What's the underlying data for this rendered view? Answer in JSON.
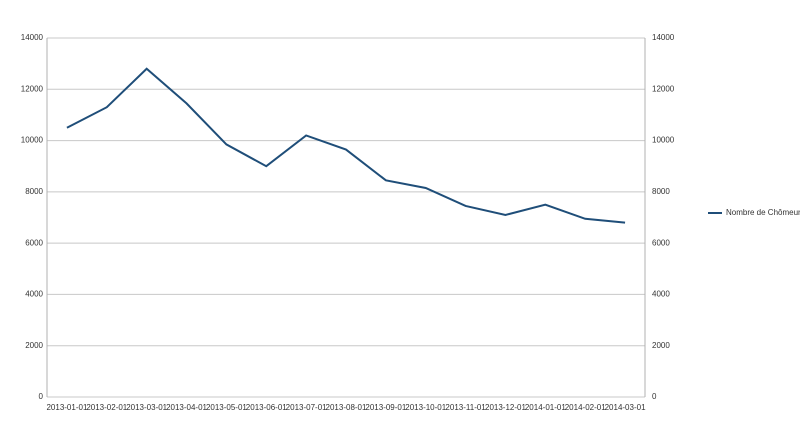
{
  "chart_data": {
    "type": "line",
    "categories": [
      "2013-01-01",
      "2013-02-01",
      "2013-03-01",
      "2013-04-01",
      "2013-05-01",
      "2013-06-01",
      "2013-07-01",
      "2013-08-01",
      "2013-09-01",
      "2013-10-01",
      "2013-11-01",
      "2013-12-01",
      "2014-01-01",
      "2014-02-01",
      "2014-03-01"
    ],
    "series": [
      {
        "name": "Nombre de Chômeur",
        "color": "#1f4e79",
        "values": [
          10500,
          11300,
          12800,
          11450,
          9850,
          9000,
          10200,
          9650,
          8450,
          8150,
          7450,
          7100,
          7500,
          6950,
          6800
        ]
      }
    ],
    "ylim": [
      0,
      14000
    ],
    "yticks": [
      0,
      2000,
      4000,
      6000,
      8000,
      10000,
      12000,
      14000
    ],
    "y2lim": [
      0,
      14000
    ],
    "y2ticks": [
      0,
      2000,
      4000,
      6000,
      8000,
      10000,
      12000,
      14000
    ],
    "grid": true,
    "legend": "right"
  }
}
